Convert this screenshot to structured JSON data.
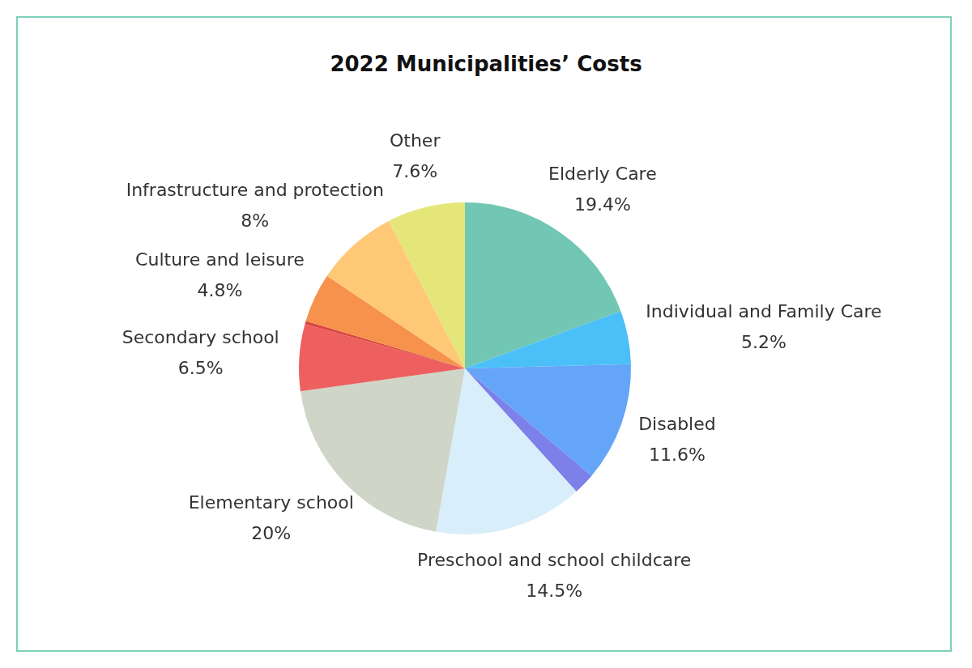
{
  "chart_data": {
    "type": "pie",
    "title": "2022 Municipalities’ Costs",
    "categories": [
      "Elderly Care",
      "Individual and Family Care",
      "Disabled",
      null,
      "Preschool and school childcare",
      "Elementary school",
      "Secondary school",
      null,
      "Culture and leisure",
      "Infrastructure and protection",
      "Other"
    ],
    "values": [
      19.4,
      5.2,
      11.6,
      2.1,
      14.5,
      20,
      6.5,
      0.3,
      4.8,
      8,
      7.6
    ],
    "value_labels": [
      "19.4%",
      "5.2%",
      "11.6%",
      null,
      "14.5%",
      "20%",
      "6.5%",
      null,
      "4.8%",
      "8%",
      "7.6%"
    ],
    "colors": [
      "#72c7b4",
      "#4bc0f8",
      "#64a5f8",
      "#7d80e8",
      "#d8eefa",
      "#cfd6c8",
      "#ee6060",
      "#d9453f",
      "#f6924c",
      "#fec877",
      "#e5e67a"
    ],
    "data_labels": true
  }
}
